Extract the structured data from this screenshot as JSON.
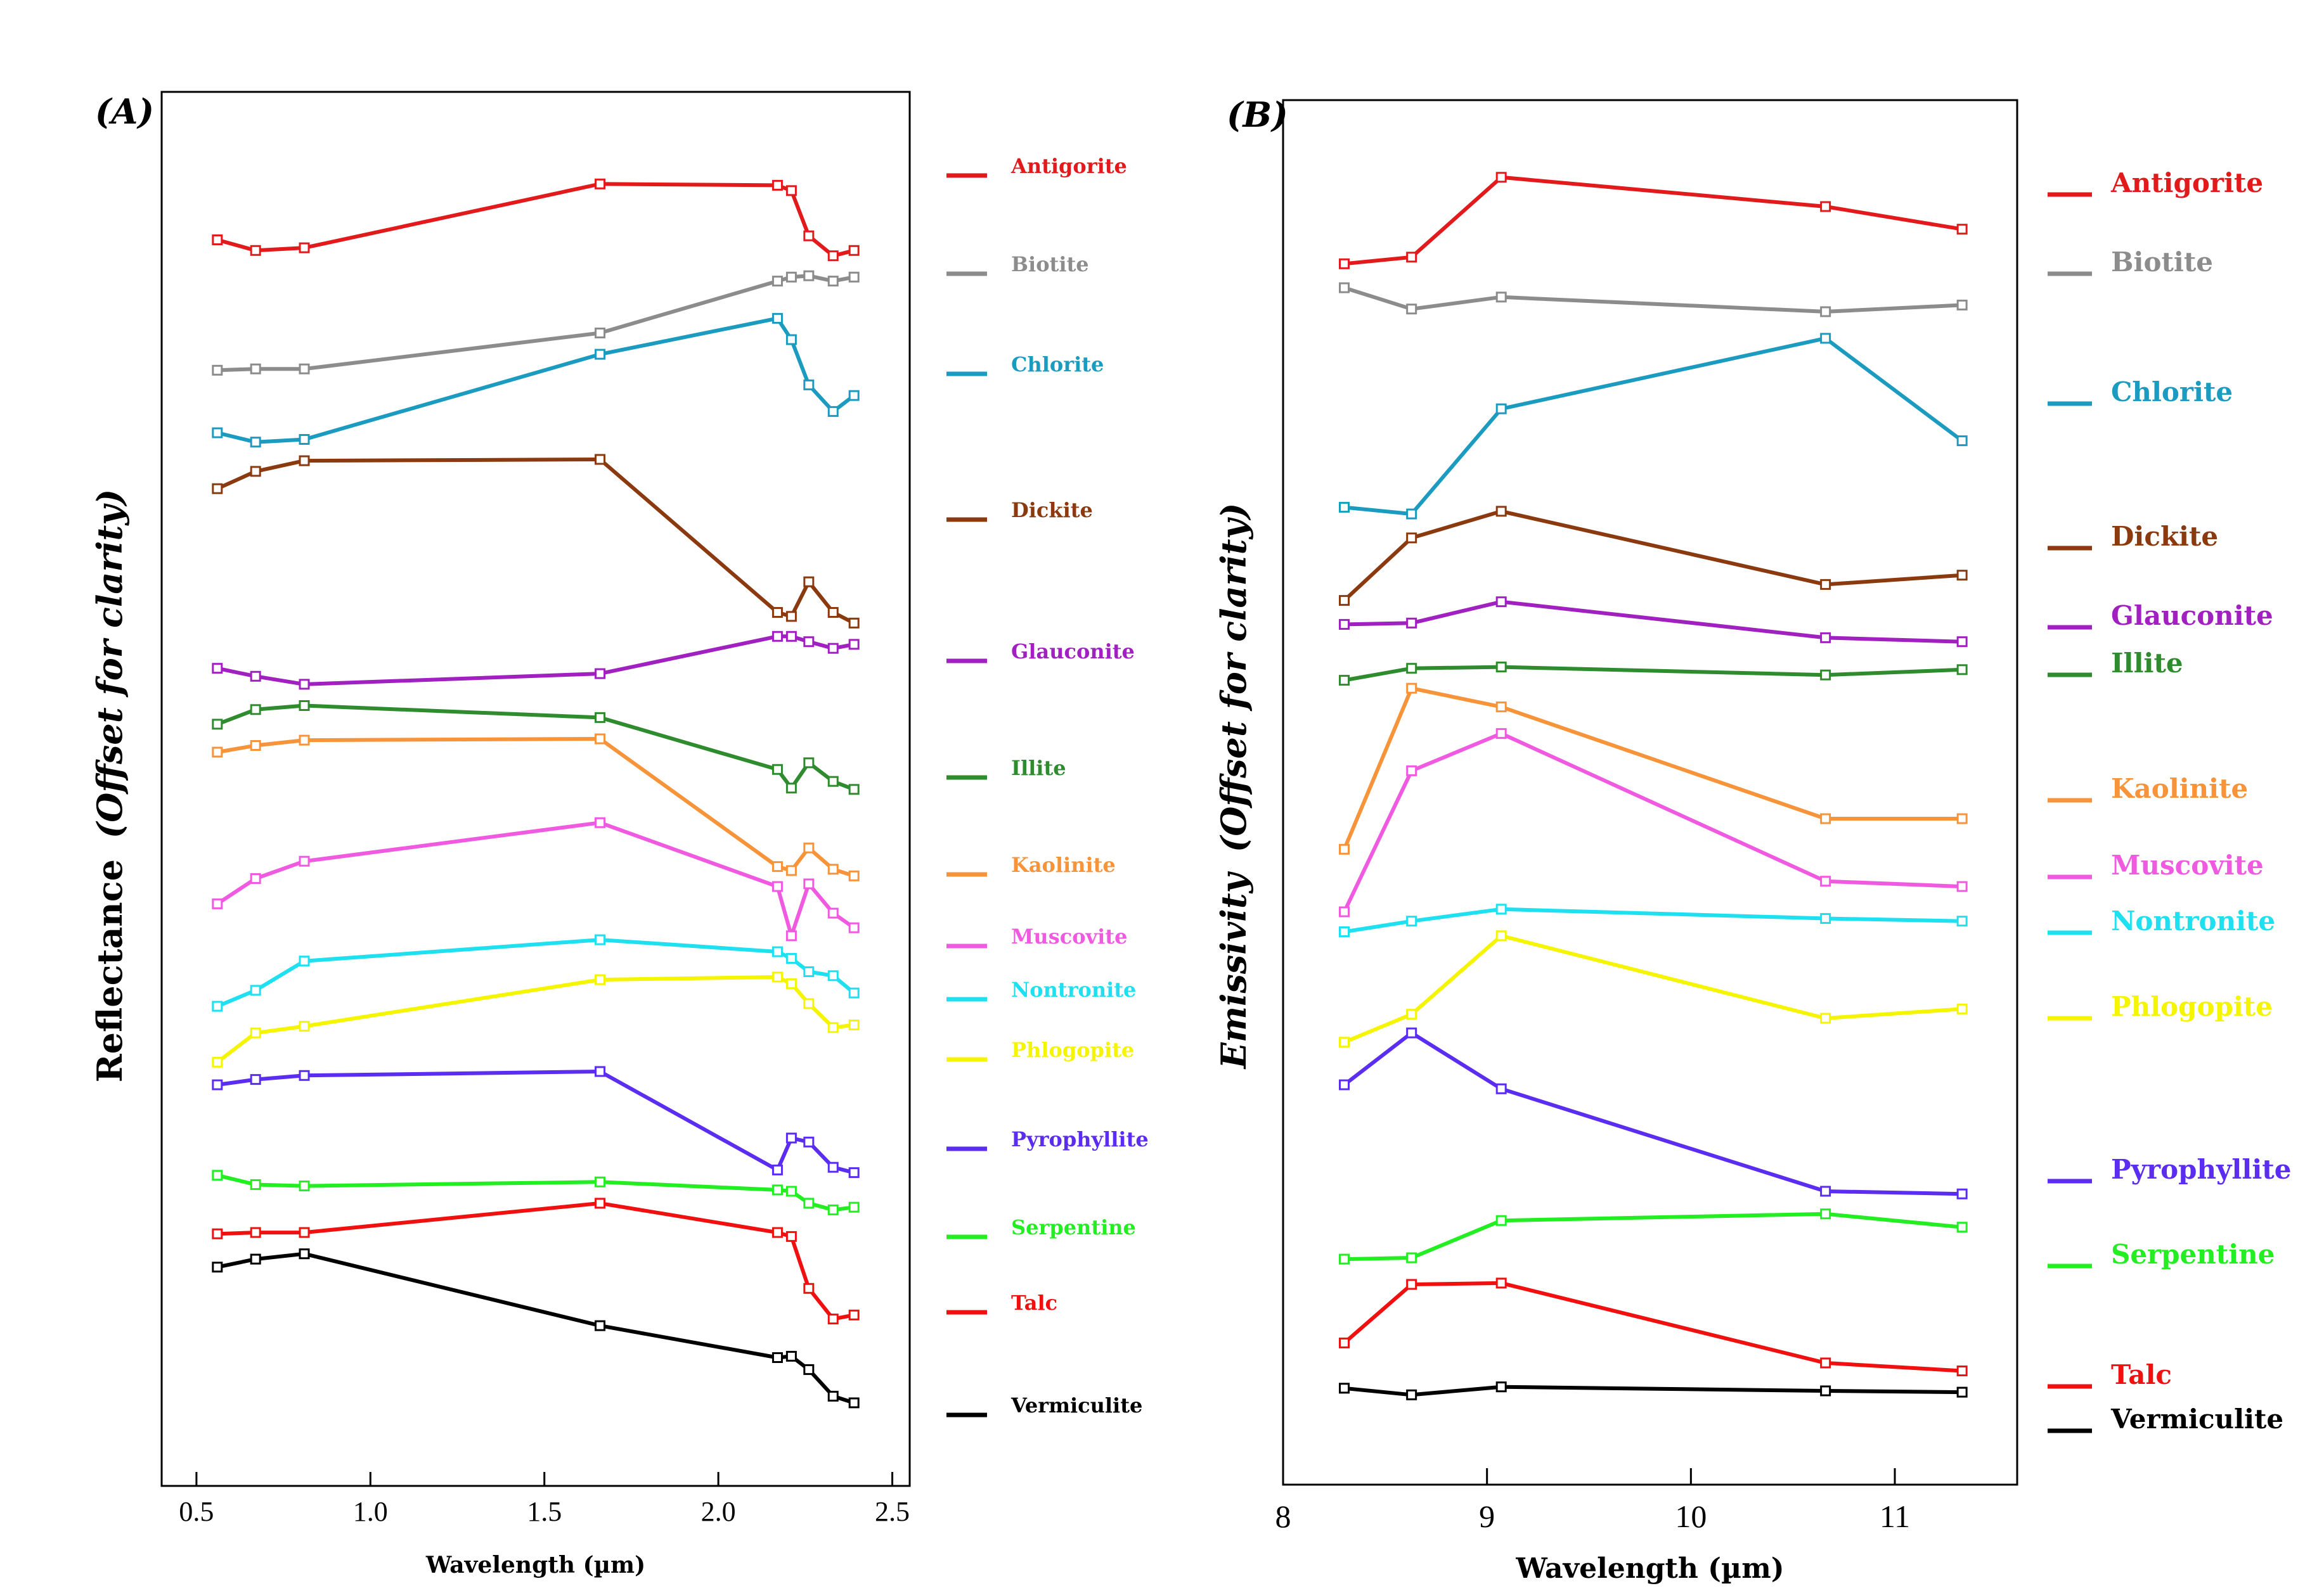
{
  "figure": {
    "panel_a_label": "(A)",
    "panel_b_label": "(B)"
  },
  "chart_data": [
    {
      "type": "line",
      "panel": "(A)",
      "title": "",
      "xlabel": "Wavelength (µm)",
      "ylabel_main": "Reflectance",
      "ylabel_note": "(Offset for clarity)",
      "xlim": [
        0.4,
        2.55
      ],
      "ylim": [
        0,
        100
      ],
      "xticks": [
        0.5,
        1.0,
        1.5,
        2.0,
        2.5
      ],
      "xtick_labels": [
        "0.5",
        "1.0",
        "1.5",
        "2.0",
        "2.5"
      ],
      "legend_position": "right",
      "x": [
        0.56,
        0.67,
        0.81,
        1.66,
        2.17,
        2.21,
        2.26,
        2.33,
        2.39
      ],
      "series": [
        {
          "name": "Antigorite",
          "color": "#e31a1c",
          "values": [
            91.5,
            90.7,
            90.9,
            95.7,
            95.6,
            95.2,
            91.8,
            90.3,
            90.7
          ]
        },
        {
          "name": "Biotite",
          "color": "#8c8c8c",
          "values": [
            81.7,
            81.8,
            81.8,
            84.5,
            88.4,
            88.7,
            88.8,
            88.4,
            88.7
          ]
        },
        {
          "name": "Chlorite",
          "color": "#1a9bbf",
          "values": [
            77.0,
            76.3,
            76.5,
            82.9,
            85.6,
            84.0,
            80.6,
            78.6,
            79.8
          ]
        },
        {
          "name": "Dickite",
          "color": "#8b3a0f",
          "values": [
            72.8,
            74.1,
            74.9,
            75.0,
            63.5,
            63.2,
            65.8,
            63.5,
            62.7
          ]
        },
        {
          "name": "Glauconite",
          "color": "#a020c0",
          "values": [
            59.3,
            58.7,
            58.1,
            58.9,
            61.7,
            61.7,
            61.3,
            60.8,
            61.1
          ]
        },
        {
          "name": "Illite",
          "color": "#2e8b2e",
          "values": [
            55.1,
            56.2,
            56.5,
            55.6,
            51.7,
            50.3,
            52.2,
            50.8,
            50.2
          ]
        },
        {
          "name": "Kaolinite",
          "color": "#f7943a",
          "values": [
            53.0,
            53.5,
            53.9,
            54.0,
            44.4,
            44.1,
            45.8,
            44.2,
            43.7
          ]
        },
        {
          "name": "Muscovite",
          "color": "#f05ae0",
          "values": [
            41.6,
            43.5,
            44.8,
            47.7,
            42.9,
            39.2,
            43.1,
            40.9,
            39.8
          ]
        },
        {
          "name": "Nontronite",
          "color": "#1ee0f0",
          "values": [
            33.9,
            35.1,
            37.3,
            38.9,
            38.0,
            37.5,
            36.5,
            36.2,
            34.9
          ]
        },
        {
          "name": "Phlogopite",
          "color": "#f5f500",
          "values": [
            29.7,
            31.9,
            32.4,
            35.9,
            36.1,
            35.6,
            34.1,
            32.3,
            32.5
          ]
        },
        {
          "name": "Pyrophyllite",
          "color": "#5b2df0",
          "values": [
            28.0,
            28.4,
            28.7,
            29.0,
            21.6,
            24.0,
            23.7,
            21.8,
            21.4
          ]
        },
        {
          "name": "Serpentine",
          "color": "#22ee22",
          "values": [
            21.2,
            20.5,
            20.4,
            20.7,
            20.1,
            20.0,
            19.1,
            18.6,
            18.8
          ]
        },
        {
          "name": "Talc",
          "color": "#f01010",
          "values": [
            16.8,
            16.9,
            16.9,
            19.1,
            16.9,
            16.6,
            12.7,
            10.4,
            10.7
          ]
        },
        {
          "name": "Vermiculite",
          "color": "#000000",
          "values": [
            14.3,
            14.9,
            15.3,
            9.9,
            7.5,
            7.6,
            6.6,
            4.6,
            4.1
          ]
        }
      ]
    },
    {
      "type": "line",
      "panel": "(B)",
      "title": "",
      "xlabel": "Wavelength (µm)",
      "ylabel_main": "Emissivity",
      "ylabel_note": "(Offset  for clarity)",
      "xlim": [
        8,
        11.6
      ],
      "ylim": [
        0,
        100
      ],
      "xticks": [
        8,
        9,
        10,
        11
      ],
      "xtick_labels": [
        "8",
        "9",
        "10",
        "11"
      ],
      "legend_position": "right",
      "x": [
        8.3,
        8.63,
        9.07,
        10.66,
        11.33
      ],
      "series": [
        {
          "name": "Antigorite",
          "color": "#e31a1c",
          "values": [
            89.7,
            90.2,
            96.2,
            94.0,
            92.3
          ]
        },
        {
          "name": "Biotite",
          "color": "#8c8c8c",
          "values": [
            87.9,
            86.3,
            87.2,
            86.1,
            86.6
          ]
        },
        {
          "name": "Chlorite",
          "color": "#1a9bbf",
          "values": [
            71.4,
            70.9,
            78.8,
            84.1,
            76.4
          ]
        },
        {
          "name": "Dickite",
          "color": "#8b3a0f",
          "values": [
            64.4,
            69.1,
            71.1,
            65.6,
            66.3
          ]
        },
        {
          "name": "Glauconite",
          "color": "#a020c0",
          "values": [
            62.6,
            62.7,
            64.3,
            61.6,
            61.3
          ]
        },
        {
          "name": "Illite",
          "color": "#2e8b2e",
          "values": [
            58.4,
            59.3,
            59.4,
            58.8,
            59.2
          ]
        },
        {
          "name": "Kaolinite",
          "color": "#f7943a",
          "values": [
            45.7,
            57.8,
            56.4,
            48.0,
            48.0
          ]
        },
        {
          "name": "Muscovite",
          "color": "#f05ae0",
          "values": [
            41.0,
            51.6,
            54.4,
            43.3,
            42.9
          ]
        },
        {
          "name": "Nontronite",
          "color": "#1ee0f0",
          "values": [
            39.5,
            40.3,
            41.2,
            40.5,
            40.3
          ]
        },
        {
          "name": "Phlogopite",
          "color": "#f5f500",
          "values": [
            31.2,
            33.3,
            39.2,
            33.0,
            33.7
          ]
        },
        {
          "name": "Pyrophyllite",
          "color": "#5b2df0",
          "values": [
            28.0,
            31.9,
            27.7,
            20.0,
            19.8
          ]
        },
        {
          "name": "Serpentine",
          "color": "#22ee22",
          "values": [
            14.9,
            15.0,
            17.8,
            18.3,
            17.3
          ]
        },
        {
          "name": "Talc",
          "color": "#f01010",
          "values": [
            8.6,
            13.0,
            13.1,
            7.1,
            6.5
          ]
        },
        {
          "name": "Vermiculite",
          "color": "#000000",
          "values": [
            5.2,
            4.7,
            5.3,
            5.0,
            4.9
          ]
        }
      ]
    }
  ]
}
